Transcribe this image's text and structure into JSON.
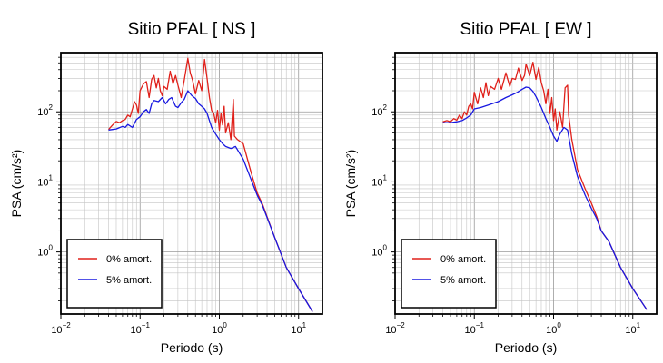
{
  "chart_data": [
    {
      "type": "line",
      "title": "Sitio PFAL [ NS ]",
      "xlabel": "Periodo (s)",
      "ylabel": "PSA (cm/s²)",
      "xscale": "log",
      "yscale": "log",
      "xlim": [
        0.01,
        20
      ],
      "ylim": [
        0.13,
        700
      ],
      "grid": true,
      "legend_position": "bottom-left",
      "xticks": [
        {
          "value": 0.01,
          "base": "10",
          "exp": "−2"
        },
        {
          "value": 0.1,
          "base": "10",
          "exp": "−1"
        },
        {
          "value": 1,
          "base": "10",
          "exp": "0"
        },
        {
          "value": 10,
          "base": "10",
          "exp": "1"
        }
      ],
      "yticks": [
        {
          "value": 1,
          "base": "10",
          "exp": "0"
        },
        {
          "value": 10,
          "base": "10",
          "exp": "1"
        },
        {
          "value": 100,
          "base": "10",
          "exp": "2"
        }
      ],
      "series": [
        {
          "name": "0% amort.",
          "color": "#e0201a",
          "points": [
            [
              0.04,
              56
            ],
            [
              0.045,
              65
            ],
            [
              0.05,
              73
            ],
            [
              0.055,
              70
            ],
            [
              0.06,
              75
            ],
            [
              0.065,
              78
            ],
            [
              0.07,
              90
            ],
            [
              0.075,
              85
            ],
            [
              0.08,
              110
            ],
            [
              0.085,
              140
            ],
            [
              0.09,
              125
            ],
            [
              0.095,
              95
            ],
            [
              0.1,
              200
            ],
            [
              0.11,
              250
            ],
            [
              0.12,
              270
            ],
            [
              0.13,
              160
            ],
            [
              0.14,
              290
            ],
            [
              0.15,
              330
            ],
            [
              0.16,
              220
            ],
            [
              0.17,
              300
            ],
            [
              0.18,
              200
            ],
            [
              0.19,
              170
            ],
            [
              0.2,
              230
            ],
            [
              0.22,
              210
            ],
            [
              0.24,
              380
            ],
            [
              0.26,
              250
            ],
            [
              0.28,
              330
            ],
            [
              0.3,
              240
            ],
            [
              0.33,
              160
            ],
            [
              0.36,
              280
            ],
            [
              0.4,
              580
            ],
            [
              0.43,
              360
            ],
            [
              0.46,
              280
            ],
            [
              0.5,
              180
            ],
            [
              0.55,
              280
            ],
            [
              0.6,
              200
            ],
            [
              0.65,
              560
            ],
            [
              0.7,
              300
            ],
            [
              0.75,
              160
            ],
            [
              0.8,
              105
            ],
            [
              0.85,
              95
            ],
            [
              0.9,
              70
            ],
            [
              0.95,
              105
            ],
            [
              1.0,
              55
            ],
            [
              1.05,
              95
            ],
            [
              1.1,
              65
            ],
            [
              1.15,
              120
            ],
            [
              1.2,
              50
            ],
            [
              1.3,
              70
            ],
            [
              1.4,
              40
            ],
            [
              1.5,
              150
            ],
            [
              1.55,
              45
            ],
            [
              1.7,
              40
            ],
            [
              2.0,
              35
            ],
            [
              2.5,
              14
            ],
            [
              3.0,
              7
            ],
            [
              3.5,
              4.8
            ],
            [
              5.0,
              1.6
            ],
            [
              7.0,
              0.6
            ],
            [
              10.0,
              0.3
            ],
            [
              15.0,
              0.14
            ]
          ]
        },
        {
          "name": "5% amort.",
          "color": "#1818e0",
          "points": [
            [
              0.04,
              55
            ],
            [
              0.045,
              56
            ],
            [
              0.05,
              57
            ],
            [
              0.06,
              62
            ],
            [
              0.065,
              60
            ],
            [
              0.07,
              66
            ],
            [
              0.08,
              60
            ],
            [
              0.09,
              78
            ],
            [
              0.1,
              85
            ],
            [
              0.11,
              100
            ],
            [
              0.12,
              108
            ],
            [
              0.13,
              95
            ],
            [
              0.14,
              130
            ],
            [
              0.15,
              145
            ],
            [
              0.17,
              140
            ],
            [
              0.19,
              160
            ],
            [
              0.21,
              130
            ],
            [
              0.23,
              150
            ],
            [
              0.25,
              160
            ],
            [
              0.28,
              120
            ],
            [
              0.3,
              115
            ],
            [
              0.33,
              135
            ],
            [
              0.36,
              150
            ],
            [
              0.4,
              200
            ],
            [
              0.45,
              170
            ],
            [
              0.5,
              155
            ],
            [
              0.55,
              130
            ],
            [
              0.6,
              120
            ],
            [
              0.65,
              110
            ],
            [
              0.7,
              95
            ],
            [
              0.8,
              60
            ],
            [
              0.9,
              48
            ],
            [
              1.0,
              40
            ],
            [
              1.1,
              35
            ],
            [
              1.2,
              32
            ],
            [
              1.4,
              30
            ],
            [
              1.6,
              32
            ],
            [
              2.0,
              21
            ],
            [
              2.5,
              11
            ],
            [
              3.0,
              6.5
            ],
            [
              3.5,
              4.6
            ],
            [
              5.0,
              1.6
            ],
            [
              7.0,
              0.6
            ],
            [
              10.0,
              0.3
            ],
            [
              15.0,
              0.14
            ]
          ]
        }
      ]
    },
    {
      "type": "line",
      "title": "Sitio PFAL [ EW ]",
      "xlabel": "Periodo (s)",
      "ylabel": "PSA (cm/s²)",
      "xscale": "log",
      "yscale": "log",
      "xlim": [
        0.01,
        20
      ],
      "ylim": [
        0.13,
        700
      ],
      "grid": true,
      "legend_position": "bottom-left",
      "xticks": [
        {
          "value": 0.01,
          "base": "10",
          "exp": "−2"
        },
        {
          "value": 0.1,
          "base": "10",
          "exp": "−1"
        },
        {
          "value": 1,
          "base": "10",
          "exp": "0"
        },
        {
          "value": 10,
          "base": "10",
          "exp": "1"
        }
      ],
      "yticks": [
        {
          "value": 1,
          "base": "10",
          "exp": "0"
        },
        {
          "value": 10,
          "base": "10",
          "exp": "1"
        },
        {
          "value": 100,
          "base": "10",
          "exp": "2"
        }
      ],
      "series": [
        {
          "name": "0% amort.",
          "color": "#e0201a",
          "points": [
            [
              0.04,
              72
            ],
            [
              0.045,
              75
            ],
            [
              0.05,
              72
            ],
            [
              0.055,
              80
            ],
            [
              0.06,
              76
            ],
            [
              0.065,
              90
            ],
            [
              0.07,
              80
            ],
            [
              0.075,
              100
            ],
            [
              0.08,
              90
            ],
            [
              0.085,
              120
            ],
            [
              0.09,
              130
            ],
            [
              0.095,
              110
            ],
            [
              0.1,
              190
            ],
            [
              0.11,
              130
            ],
            [
              0.12,
              220
            ],
            [
              0.13,
              160
            ],
            [
              0.14,
              260
            ],
            [
              0.15,
              170
            ],
            [
              0.16,
              230
            ],
            [
              0.18,
              210
            ],
            [
              0.2,
              300
            ],
            [
              0.22,
              210
            ],
            [
              0.25,
              360
            ],
            [
              0.28,
              230
            ],
            [
              0.3,
              300
            ],
            [
              0.33,
              290
            ],
            [
              0.36,
              420
            ],
            [
              0.4,
              280
            ],
            [
              0.43,
              330
            ],
            [
              0.45,
              480
            ],
            [
              0.5,
              330
            ],
            [
              0.55,
              510
            ],
            [
              0.6,
              290
            ],
            [
              0.65,
              430
            ],
            [
              0.7,
              260
            ],
            [
              0.75,
              200
            ],
            [
              0.8,
              130
            ],
            [
              0.85,
              210
            ],
            [
              0.9,
              95
            ],
            [
              0.95,
              160
            ],
            [
              1.0,
              75
            ],
            [
              1.05,
              110
            ],
            [
              1.1,
              55
            ],
            [
              1.2,
              100
            ],
            [
              1.3,
              60
            ],
            [
              1.4,
              220
            ],
            [
              1.5,
              240
            ],
            [
              1.55,
              90
            ],
            [
              1.7,
              40
            ],
            [
              2.0,
              15
            ],
            [
              2.5,
              8
            ],
            [
              3.0,
              5
            ],
            [
              3.5,
              3.2
            ],
            [
              4.0,
              2.0
            ],
            [
              5.0,
              1.4
            ],
            [
              7.0,
              0.6
            ],
            [
              10.0,
              0.3
            ],
            [
              15.0,
              0.15
            ]
          ]
        },
        {
          "name": "5% amort.",
          "color": "#1818e0",
          "points": [
            [
              0.04,
              70
            ],
            [
              0.05,
              70
            ],
            [
              0.06,
              72
            ],
            [
              0.07,
              75
            ],
            [
              0.08,
              82
            ],
            [
              0.09,
              90
            ],
            [
              0.1,
              110
            ],
            [
              0.12,
              115
            ],
            [
              0.15,
              125
            ],
            [
              0.2,
              140
            ],
            [
              0.25,
              160
            ],
            [
              0.3,
              175
            ],
            [
              0.35,
              190
            ],
            [
              0.4,
              210
            ],
            [
              0.45,
              225
            ],
            [
              0.5,
              220
            ],
            [
              0.55,
              195
            ],
            [
              0.6,
              165
            ],
            [
              0.7,
              115
            ],
            [
              0.8,
              80
            ],
            [
              0.9,
              60
            ],
            [
              1.0,
              45
            ],
            [
              1.1,
              38
            ],
            [
              1.2,
              48
            ],
            [
              1.35,
              60
            ],
            [
              1.5,
              55
            ],
            [
              1.7,
              25
            ],
            [
              2.0,
              12
            ],
            [
              2.5,
              6.5
            ],
            [
              3.0,
              4.2
            ],
            [
              3.5,
              3.0
            ],
            [
              4.0,
              2.0
            ],
            [
              5.0,
              1.4
            ],
            [
              7.0,
              0.6
            ],
            [
              10.0,
              0.3
            ],
            [
              15.0,
              0.15
            ]
          ]
        }
      ]
    }
  ]
}
